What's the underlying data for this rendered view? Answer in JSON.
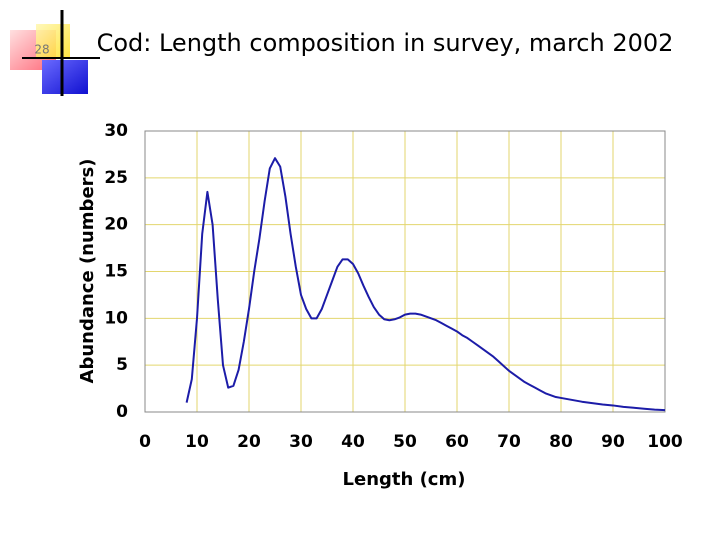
{
  "slide_number": "28",
  "chart_data": {
    "type": "line",
    "title": "Cod: Length composition in survey, march 2002",
    "xlabel": "Length (cm)",
    "ylabel": "Abundance (numbers)",
    "x": [
      8,
      9,
      10,
      11,
      12,
      13,
      14,
      15,
      16,
      17,
      18,
      19,
      20,
      21,
      22,
      23,
      24,
      25,
      26,
      27,
      28,
      29,
      30,
      31,
      32,
      33,
      34,
      35,
      36,
      37,
      38,
      39,
      40,
      41,
      42,
      43,
      44,
      45,
      46,
      47,
      48,
      49,
      50,
      51,
      52,
      53,
      54,
      55,
      56,
      57,
      58,
      59,
      60,
      61,
      62,
      63,
      64,
      65,
      66,
      67,
      68,
      69,
      70,
      71,
      72,
      73,
      74,
      75,
      76,
      77,
      78,
      79,
      80,
      82,
      84,
      86,
      88,
      90,
      92,
      94,
      96,
      98,
      100
    ],
    "values": [
      1,
      3.5,
      10,
      19,
      23.5,
      20,
      12,
      5,
      2.6,
      2.8,
      4.5,
      7.5,
      11,
      15,
      18.5,
      22.5,
      26,
      27.1,
      26.2,
      23,
      19,
      15.5,
      12.5,
      11,
      10,
      10,
      11,
      12.5,
      14,
      15.5,
      16.3,
      16.3,
      15.8,
      14.8,
      13.5,
      12.3,
      11.2,
      10.4,
      9.9,
      9.8,
      9.9,
      10.1,
      10.4,
      10.5,
      10.5,
      10.4,
      10.2,
      10,
      9.8,
      9.5,
      9.2,
      8.9,
      8.6,
      8.2,
      7.9,
      7.5,
      7.1,
      6.7,
      6.3,
      5.9,
      5.4,
      4.9,
      4.4,
      4,
      3.6,
      3.2,
      2.9,
      2.6,
      2.3,
      2,
      1.8,
      1.6,
      1.5,
      1.3,
      1.1,
      0.95,
      0.8,
      0.7,
      0.55,
      0.45,
      0.35,
      0.25,
      0.2
    ],
    "color": "#1c1ca8",
    "xlim": [
      0,
      100
    ],
    "xticks": [
      0,
      10,
      20,
      30,
      40,
      50,
      60,
      70,
      80,
      90,
      100
    ],
    "ylim": [
      0,
      30
    ],
    "yticks": [
      0,
      5,
      10,
      15,
      20,
      25,
      30
    ],
    "grid": true,
    "grid_color": "#e3d66e"
  }
}
